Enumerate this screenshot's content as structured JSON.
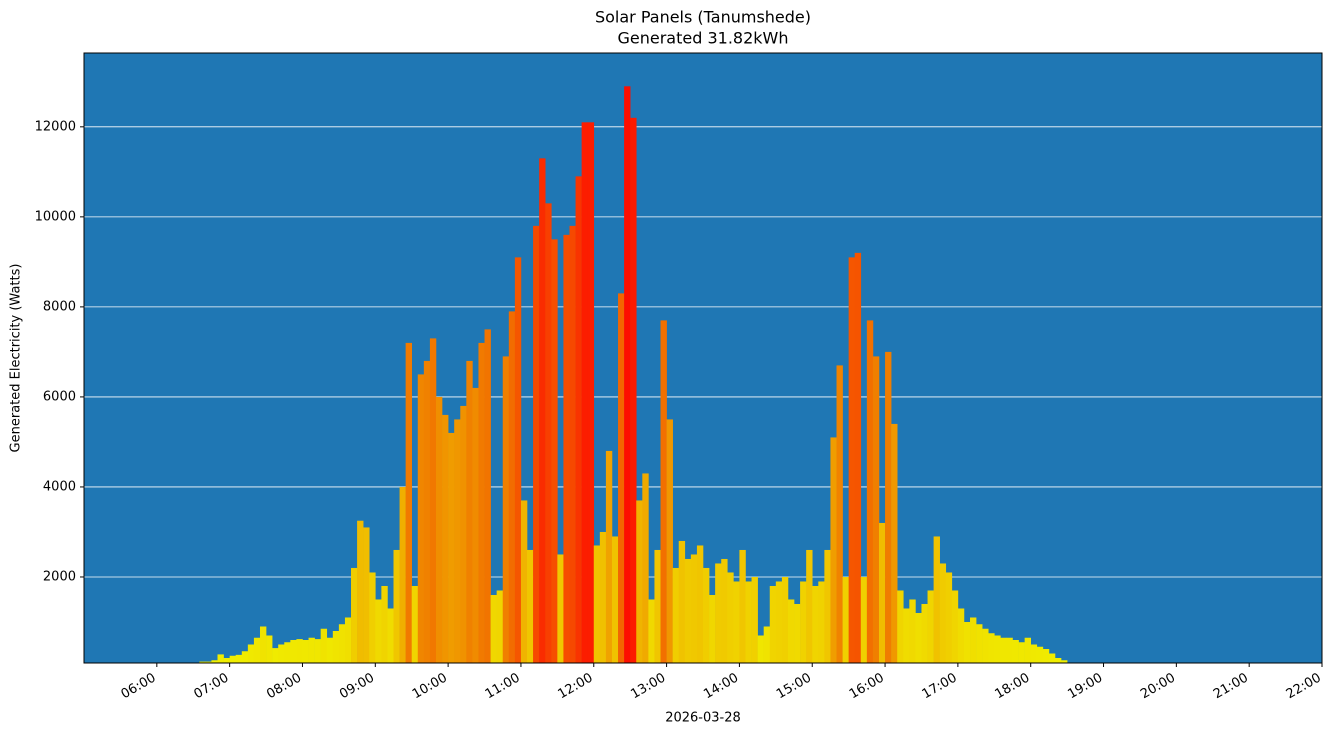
{
  "chart_data": {
    "type": "bar",
    "title": "Solar Panels (Tanumshede)",
    "subtitle": "Generated 31.82kWh",
    "x_label": "2026-03-28",
    "y_label": "Generated Electricity (Watts)",
    "background": "#1f77b4",
    "colormap": [
      "#f0f000",
      "#f08000",
      "#ff0000"
    ],
    "grid": true,
    "xlim": [
      "05:00",
      "22:00"
    ],
    "xticks": [
      "06:00",
      "07:00",
      "08:00",
      "09:00",
      "10:00",
      "11:00",
      "12:00",
      "13:00",
      "14:00",
      "15:00",
      "16:00",
      "17:00",
      "18:00",
      "19:00",
      "20:00",
      "21:00",
      "22:00"
    ],
    "ylim": [
      89,
      13640
    ],
    "yticks": [
      2000,
      4000,
      6000,
      8000,
      10000,
      12000
    ],
    "x": [
      "06:00",
      "06:05",
      "06:10",
      "06:15",
      "06:20",
      "06:25",
      "06:30",
      "06:35",
      "06:40",
      "06:45",
      "06:50",
      "06:55",
      "07:00",
      "07:05",
      "07:10",
      "07:15",
      "07:20",
      "07:25",
      "07:30",
      "07:35",
      "07:40",
      "07:45",
      "07:50",
      "07:55",
      "08:00",
      "08:05",
      "08:10",
      "08:15",
      "08:20",
      "08:25",
      "08:30",
      "08:35",
      "08:40",
      "08:45",
      "08:50",
      "08:55",
      "09:00",
      "09:05",
      "09:10",
      "09:15",
      "09:20",
      "09:25",
      "09:30",
      "09:35",
      "09:40",
      "09:45",
      "09:50",
      "09:55",
      "10:00",
      "10:05",
      "10:10",
      "10:15",
      "10:20",
      "10:25",
      "10:30",
      "10:35",
      "10:40",
      "10:45",
      "10:50",
      "10:55",
      "11:00",
      "11:05",
      "11:10",
      "11:15",
      "11:20",
      "11:25",
      "11:30",
      "11:35",
      "11:40",
      "11:45",
      "11:50",
      "11:55",
      "12:00",
      "12:05",
      "12:10",
      "12:15",
      "12:20",
      "12:25",
      "12:30",
      "12:35",
      "12:40",
      "12:45",
      "12:50",
      "12:55",
      "13:00",
      "13:05",
      "13:10",
      "13:15",
      "13:20",
      "13:25",
      "13:30",
      "13:35",
      "13:40",
      "13:45",
      "13:50",
      "13:55",
      "14:00",
      "14:05",
      "14:10",
      "14:15",
      "14:20",
      "14:25",
      "14:30",
      "14:35",
      "14:40",
      "14:45",
      "14:50",
      "14:55",
      "15:00",
      "15:05",
      "15:10",
      "15:15",
      "15:20",
      "15:25",
      "15:30",
      "15:35",
      "15:40",
      "15:45",
      "15:50",
      "15:55",
      "16:00",
      "16:05",
      "16:10",
      "16:15",
      "16:20",
      "16:25",
      "16:30",
      "16:35",
      "16:40",
      "16:45",
      "16:50",
      "16:55",
      "17:00",
      "17:05",
      "17:10",
      "17:15",
      "17:20",
      "17:25",
      "17:30",
      "17:35",
      "17:40",
      "17:45",
      "17:50",
      "17:55",
      "18:00",
      "18:05",
      "18:10",
      "18:15",
      "18:20",
      "18:25",
      "18:30",
      "18:35"
    ],
    "values": [
      60,
      60,
      60,
      60,
      30,
      30,
      80,
      120,
      120,
      150,
      280,
      200,
      250,
      270,
      350,
      500,
      650,
      900,
      700,
      420,
      500,
      550,
      600,
      620,
      600,
      650,
      620,
      850,
      650,
      800,
      950,
      1100,
      2200,
      3250,
      3100,
      2100,
      1500,
      1800,
      1300,
      2600,
      4000,
      7200,
      1800,
      6500,
      6800,
      7300,
      6000,
      5600,
      5200,
      5500,
      5800,
      6800,
      6200,
      7200,
      7500,
      1600,
      1700,
      6900,
      7900,
      9100,
      3700,
      2600,
      9800,
      11300,
      10300,
      9500,
      2500,
      9600,
      9800,
      10900,
      12100,
      12100,
      2700,
      3000,
      4800,
      2900,
      8300,
      12900,
      12200,
      3700,
      4300,
      1500,
      2600,
      7700,
      5500,
      2200,
      2800,
      2400,
      2500,
      2700,
      2200,
      1600,
      2300,
      2400,
      2100,
      1900,
      2600,
      1900,
      2000,
      700,
      900,
      1800,
      1900,
      2000,
      1500,
      1400,
      1900,
      2600,
      1800,
      1900,
      2600,
      5100,
      6700,
      2000,
      9100,
      9200,
      2000,
      7700,
      6900,
      3200,
      7000,
      5400,
      1700,
      1300,
      1500,
      1200,
      1400,
      1700,
      2900,
      2300,
      2100,
      1700,
      1300,
      1000,
      1100,
      950,
      850,
      750,
      700,
      650,
      650,
      600,
      550,
      650,
      500,
      450,
      400,
      300,
      200,
      150,
      100,
      80
    ]
  }
}
